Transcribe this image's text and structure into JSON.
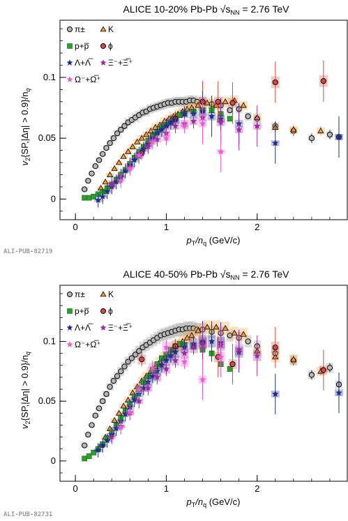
{
  "chart_data": [
    {
      "type": "scatter",
      "title": "ALICE 10-20% Pb-Pb √s",
      "title_sub": "NN",
      "title_tail": " = 2.76 TeV",
      "xlabel": "p",
      "xlabel_sub": "T",
      "xlabel_mid": "/n",
      "xlabel_sub2": "q",
      "xlabel_tail": " (GeV/c)",
      "ylabel": "v₂{SP,|Δη| > 0.9}/n_q",
      "ylabel_v": "v",
      "ylabel_sub": "2",
      "ylabel_mid": "{SP,|Δη| > 0.9}/n",
      "ylabel_sub2": "q",
      "xlim": [
        -0.17,
        3.0
      ],
      "ylim": [
        -0.017,
        0.147
      ],
      "x_ticks": [
        "0",
        "1",
        "2"
      ],
      "y_ticks": [
        "0",
        "0.05",
        "0.1"
      ],
      "credit": "ALI-PUB-82719",
      "legend": [
        "π±",
        "K",
        "p+p̅",
        "ϕ",
        "Λ+Λ̅",
        "Ξ⁻+Ξ̅⁺",
        "Ω⁻+Ω̅⁺"
      ],
      "series": [
        {
          "name": "π±",
          "marker": "circle",
          "color": "#888888",
          "x": [
            0.1,
            0.14,
            0.18,
            0.22,
            0.26,
            0.3,
            0.34,
            0.38,
            0.42,
            0.46,
            0.5,
            0.54,
            0.58,
            0.62,
            0.66,
            0.7,
            0.74,
            0.78,
            0.82,
            0.86,
            0.9,
            0.94,
            0.98,
            1.02,
            1.06,
            1.1,
            1.14,
            1.18,
            1.22,
            1.26,
            1.3,
            1.34,
            1.4,
            1.5,
            1.6,
            1.7,
            1.8,
            1.9,
            2.0,
            2.2,
            2.4,
            2.6,
            2.8,
            2.9
          ],
          "y": [
            0.008,
            0.015,
            0.021,
            0.027,
            0.032,
            0.037,
            0.042,
            0.046,
            0.05,
            0.054,
            0.057,
            0.06,
            0.063,
            0.065,
            0.067,
            0.069,
            0.071,
            0.072,
            0.074,
            0.075,
            0.076,
            0.077,
            0.078,
            0.079,
            0.079,
            0.08,
            0.08,
            0.08,
            0.08,
            0.081,
            0.081,
            0.08,
            0.08,
            0.078,
            0.077,
            0.073,
            0.074,
            0.068,
            0.066,
            0.06,
            0.056,
            0.05,
            0.053,
            0.051
          ]
        },
        {
          "name": "K",
          "marker": "triangle",
          "color": "#f29b38",
          "x": [
            0.28,
            0.33,
            0.38,
            0.43,
            0.48,
            0.53,
            0.58,
            0.63,
            0.68,
            0.73,
            0.78,
            0.83,
            0.88,
            0.93,
            0.98,
            1.03,
            1.08,
            1.13,
            1.18,
            1.23,
            1.28,
            1.35,
            1.45,
            1.55,
            1.65,
            1.75,
            1.85,
            2.0,
            2.2,
            2.4,
            2.7
          ],
          "y": [
            0.009,
            0.014,
            0.02,
            0.025,
            0.03,
            0.035,
            0.039,
            0.043,
            0.047,
            0.05,
            0.053,
            0.056,
            0.059,
            0.061,
            0.064,
            0.066,
            0.068,
            0.07,
            0.072,
            0.074,
            0.075,
            0.077,
            0.079,
            0.077,
            0.08,
            0.081,
            0.077,
            0.067,
            0.059,
            0.057,
            0.056
          ]
        },
        {
          "name": "p+p̅",
          "marker": "square",
          "color": "#2e9e2e",
          "x": [
            0.1,
            0.15,
            0.2,
            0.25,
            0.3,
            0.35,
            0.4,
            0.45,
            0.5,
            0.55,
            0.6,
            0.65,
            0.7,
            0.75,
            0.8,
            0.85,
            0.9,
            0.95,
            1.0,
            1.05,
            1.1,
            1.15,
            1.2,
            1.3,
            1.4,
            1.5,
            1.6,
            1.7
          ],
          "y": [
            0.001,
            0.001,
            0.002,
            0.004,
            0.006,
            0.009,
            0.012,
            0.016,
            0.02,
            0.024,
            0.029,
            0.034,
            0.039,
            0.043,
            0.048,
            0.052,
            0.055,
            0.059,
            0.061,
            0.063,
            0.066,
            0.069,
            0.07,
            0.072,
            0.073,
            0.073,
            0.07,
            0.066
          ]
        },
        {
          "name": "ϕ",
          "marker": "circle",
          "color": "#d84a3a",
          "x": [
            0.73,
            1.1,
            1.4,
            1.57,
            1.73,
            2.2,
            2.73
          ],
          "y": [
            0.038,
            0.066,
            0.08,
            0.08,
            0.079,
            0.096,
            0.097
          ]
        },
        {
          "name": "Λ+Λ̅",
          "marker": "star",
          "color": "#1e2c86",
          "x": [
            0.25,
            0.3,
            0.35,
            0.4,
            0.45,
            0.5,
            0.55,
            0.6,
            0.65,
            0.7,
            0.75,
            0.8,
            0.85,
            0.9,
            0.95,
            1.0,
            1.05,
            1.1,
            1.2,
            1.3,
            1.4,
            1.5,
            1.6,
            1.8,
            2.2,
            2.9
          ],
          "y": [
            -0.001,
            0.002,
            0.006,
            0.01,
            0.014,
            0.018,
            0.023,
            0.028,
            0.032,
            0.037,
            0.041,
            0.045,
            0.05,
            0.054,
            0.057,
            0.06,
            0.063,
            0.065,
            0.07,
            0.07,
            0.072,
            0.068,
            0.066,
            0.062,
            0.046,
            0.051
          ]
        },
        {
          "name": "Ξ⁻+Ξ̅⁺",
          "marker": "star",
          "color": "#9b2aa0",
          "x": [
            0.4,
            0.5,
            0.6,
            0.7,
            0.8,
            0.9,
            1.0,
            1.1,
            1.2,
            1.3,
            1.4,
            1.6,
            1.8,
            2.0
          ],
          "y": [
            0.012,
            0.019,
            0.026,
            0.035,
            0.043,
            0.049,
            0.054,
            0.06,
            0.062,
            0.064,
            0.067,
            0.063,
            0.057,
            0.06
          ]
        },
        {
          "name": "Ω⁻+Ω̅⁺",
          "marker": "star",
          "color": "#e55fcf",
          "x": [
            0.5,
            0.6,
            0.7,
            0.85,
            1.0,
            1.2,
            1.4,
            1.6
          ],
          "y": [
            0.015,
            0.025,
            0.036,
            0.047,
            0.05,
            0.06,
            0.062,
            0.039
          ]
        }
      ]
    },
    {
      "type": "scatter",
      "title": "ALICE 40-50% Pb-Pb √s",
      "title_sub": "NN",
      "title_tail": " = 2.76 TeV",
      "xlabel": "p",
      "xlabel_sub": "T",
      "xlabel_mid": "/n",
      "xlabel_sub2": "q",
      "xlabel_tail": " (GeV/c)",
      "ylabel": "v₂{SP,|Δη| > 0.9}/n_q",
      "ylabel_v": "v",
      "ylabel_sub": "2",
      "ylabel_mid": "{SP,|Δη| > 0.9}/n",
      "ylabel_sub2": "q",
      "xlim": [
        -0.17,
        3.0
      ],
      "ylim": [
        -0.017,
        0.147
      ],
      "x_ticks": [
        "0",
        "1",
        "2"
      ],
      "y_ticks": [
        "0",
        "0.05",
        "0.1"
      ],
      "credit": "ALI-PUB-82731",
      "legend": [
        "π±",
        "K",
        "p+p̅",
        "ϕ",
        "Λ+Λ̅",
        "Ξ⁻+Ξ̅⁺",
        "Ω⁻+Ω̅⁺"
      ],
      "series": [
        {
          "name": "π±",
          "marker": "circle",
          "color": "#888888",
          "x": [
            0.1,
            0.14,
            0.18,
            0.22,
            0.26,
            0.3,
            0.34,
            0.38,
            0.42,
            0.46,
            0.5,
            0.54,
            0.58,
            0.62,
            0.66,
            0.7,
            0.74,
            0.78,
            0.82,
            0.86,
            0.9,
            0.94,
            0.98,
            1.02,
            1.06,
            1.1,
            1.14,
            1.18,
            1.22,
            1.26,
            1.3,
            1.34,
            1.4,
            1.5,
            1.6,
            1.7,
            1.8,
            1.9,
            2.0,
            2.2,
            2.4,
            2.6,
            2.8,
            2.9
          ],
          "y": [
            0.013,
            0.022,
            0.03,
            0.038,
            0.044,
            0.05,
            0.056,
            0.062,
            0.067,
            0.071,
            0.075,
            0.079,
            0.083,
            0.086,
            0.089,
            0.092,
            0.095,
            0.097,
            0.099,
            0.101,
            0.103,
            0.105,
            0.106,
            0.107,
            0.108,
            0.109,
            0.11,
            0.11,
            0.111,
            0.111,
            0.111,
            0.11,
            0.11,
            0.108,
            0.107,
            0.105,
            0.103,
            0.1,
            0.096,
            0.09,
            0.084,
            0.072,
            0.078,
            0.064
          ]
        },
        {
          "name": "K",
          "marker": "triangle",
          "color": "#f29b38",
          "x": [
            0.28,
            0.33,
            0.38,
            0.43,
            0.48,
            0.53,
            0.58,
            0.63,
            0.68,
            0.73,
            0.78,
            0.83,
            0.88,
            0.93,
            0.98,
            1.03,
            1.08,
            1.13,
            1.18,
            1.23,
            1.28,
            1.35,
            1.45,
            1.55,
            1.65,
            1.75,
            1.85,
            2.0,
            2.2,
            2.4,
            2.7
          ],
          "y": [
            0.013,
            0.02,
            0.027,
            0.034,
            0.04,
            0.046,
            0.051,
            0.057,
            0.062,
            0.067,
            0.071,
            0.075,
            0.079,
            0.083,
            0.087,
            0.09,
            0.094,
            0.097,
            0.1,
            0.103,
            0.105,
            0.109,
            0.112,
            0.112,
            0.111,
            0.107,
            0.106,
            0.092,
            0.087,
            0.085,
            0.075
          ]
        },
        {
          "name": "p+p̅",
          "marker": "square",
          "color": "#2e9e2e",
          "x": [
            0.1,
            0.15,
            0.2,
            0.25,
            0.3,
            0.35,
            0.4,
            0.45,
            0.5,
            0.55,
            0.6,
            0.65,
            0.7,
            0.75,
            0.8,
            0.85,
            0.9,
            0.95,
            1.0,
            1.05,
            1.1,
            1.15,
            1.2,
            1.3,
            1.4,
            1.5,
            1.6,
            1.7
          ],
          "y": [
            0.002,
            0.004,
            0.007,
            0.01,
            0.014,
            0.019,
            0.024,
            0.03,
            0.036,
            0.042,
            0.048,
            0.054,
            0.06,
            0.066,
            0.071,
            0.076,
            0.081,
            0.086,
            0.089,
            0.093,
            0.096,
            0.098,
            0.097,
            0.096,
            0.093,
            0.09,
            0.081,
            0.077
          ]
        },
        {
          "name": "ϕ",
          "marker": "circle",
          "color": "#d84a3a",
          "x": [
            0.73,
            1.1,
            1.4,
            1.57,
            1.73,
            2.2,
            2.73
          ],
          "y": [
            0.085,
            0.096,
            0.099,
            0.087,
            0.081,
            0.095,
            0.076
          ]
        },
        {
          "name": "Λ+Λ̅",
          "marker": "star",
          "color": "#1e2c86",
          "x": [
            0.25,
            0.3,
            0.35,
            0.4,
            0.45,
            0.5,
            0.55,
            0.6,
            0.65,
            0.7,
            0.75,
            0.8,
            0.85,
            0.9,
            0.95,
            1.0,
            1.05,
            1.1,
            1.2,
            1.3,
            1.4,
            1.5,
            1.6,
            1.8,
            2.2,
            2.9
          ],
          "y": [
            0.009,
            0.013,
            0.017,
            0.022,
            0.027,
            0.033,
            0.039,
            0.045,
            0.051,
            0.056,
            0.061,
            0.066,
            0.071,
            0.075,
            0.08,
            0.084,
            0.088,
            0.091,
            0.095,
            0.098,
            0.1,
            0.1,
            0.099,
            0.091,
            0.056,
            0.057
          ]
        },
        {
          "name": "Ξ⁻+Ξ̅⁺",
          "marker": "star",
          "color": "#9b2aa0",
          "x": [
            0.4,
            0.5,
            0.6,
            0.7,
            0.8,
            0.9,
            1.0,
            1.1,
            1.2,
            1.3,
            1.4,
            1.6,
            1.8,
            2.0
          ],
          "y": [
            0.02,
            0.029,
            0.04,
            0.05,
            0.061,
            0.07,
            0.077,
            0.084,
            0.09,
            0.095,
            0.098,
            0.097,
            0.093,
            0.088
          ]
        },
        {
          "name": "Ω⁻+Ω̅⁺",
          "marker": "star",
          "color": "#e55fcf",
          "x": [
            0.5,
            0.6,
            0.7,
            0.85,
            1.0,
            1.2,
            1.4,
            1.6
          ],
          "y": [
            0.028,
            0.041,
            0.06,
            0.078,
            0.095,
            0.083,
            0.068,
            0.087
          ]
        }
      ]
    }
  ]
}
